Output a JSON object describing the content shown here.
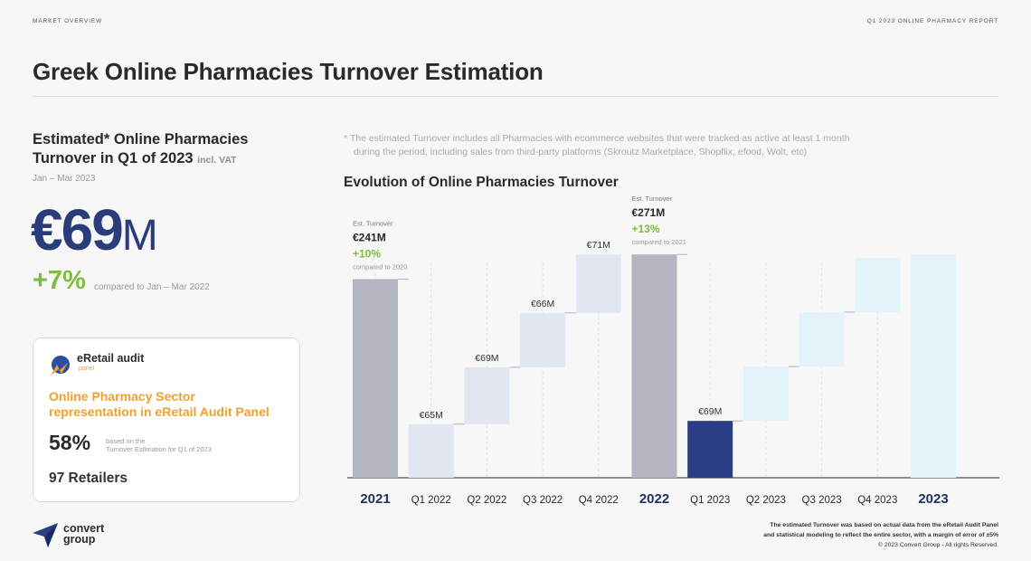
{
  "header": {
    "left_label": "MARKET OVERVIEW",
    "right_label": "Q1 2023 ONLINE PHARMACY REPORT"
  },
  "page_title": "Greek Online Pharmacies Turnover Estimation",
  "left": {
    "est_heading_line1": "Estimated* Online Pharmacies",
    "est_heading_line2": "Turnover in Q1 of 2023",
    "est_vat": "incl. VAT",
    "period": "Jan – Mar 2023",
    "big_value": "€69",
    "big_unit": "M",
    "growth_value": "+7%",
    "growth_note": "compared to Jan – Mar 2022"
  },
  "panel": {
    "brand_name": "eRetail audit",
    "brand_sub": "panel",
    "headline_line1": "Online Pharmacy Sector",
    "headline_line2": "representation in eRetail Audit Panel",
    "share": "58%",
    "share_note_line1": "based on the",
    "share_note_line2": "Turnover Estimation for Q1 of 2023",
    "retailers": "97 Retailers"
  },
  "footnote_line1": "* The estimated Turnover includes all Pharmacies with ecommerce websites that were tracked as active at least 1 month",
  "footnote_line2": "during the period, including sales from third-party platforms (Skroutz Marketplace, Shopflix, efood, Wolt, etc)",
  "chart_title": "Evolution of Online Pharmacies Turnover",
  "chart_data": {
    "type": "bar",
    "title": "Evolution of Online Pharmacies Turnover",
    "unit": "€M",
    "categories": [
      "2021",
      "Q1 2022",
      "Q2 2022",
      "Q3 2022",
      "Q4 2022",
      "2022",
      "Q1 2023",
      "Q2 2023",
      "Q3 2023",
      "Q4 2023",
      "2023"
    ],
    "series": [
      {
        "name": "Turnover",
        "values": [
          241,
          65,
          69,
          66,
          71,
          271,
          69,
          null,
          null,
          null,
          null
        ],
        "labels": [
          "",
          "€65M",
          "€69M",
          "€66M",
          "€71M",
          "",
          "€69M",
          "",
          "",
          "",
          ""
        ]
      }
    ],
    "annotations": [
      {
        "category": "2021",
        "label": "Est. Turnover",
        "value_label": "€241M",
        "change": "+10%",
        "note": "compared to 2020"
      },
      {
        "category": "2022",
        "label": "Est. Turnover",
        "value_label": "€271M",
        "change": "+13%",
        "note": "compared to 2021"
      }
    ],
    "colors": {
      "total": "#b3b6c0",
      "quarter": "#e1e6f0",
      "current": "#2b3e86",
      "forecast": "#e2f3fa",
      "change": "#7cbd3a"
    },
    "ylim": [
      0,
      280
    ]
  },
  "logo": {
    "line1": "convert",
    "line2": "group"
  },
  "bottom_note": {
    "line1": "The estimated Turnover was based on actual data from the eRetail Audit Panel",
    "line2": "and statistical modeling to reflect the entire sector, with a margin of error of ±5%",
    "copyright": "© 2023 Convert Group - All rights Reserved."
  }
}
